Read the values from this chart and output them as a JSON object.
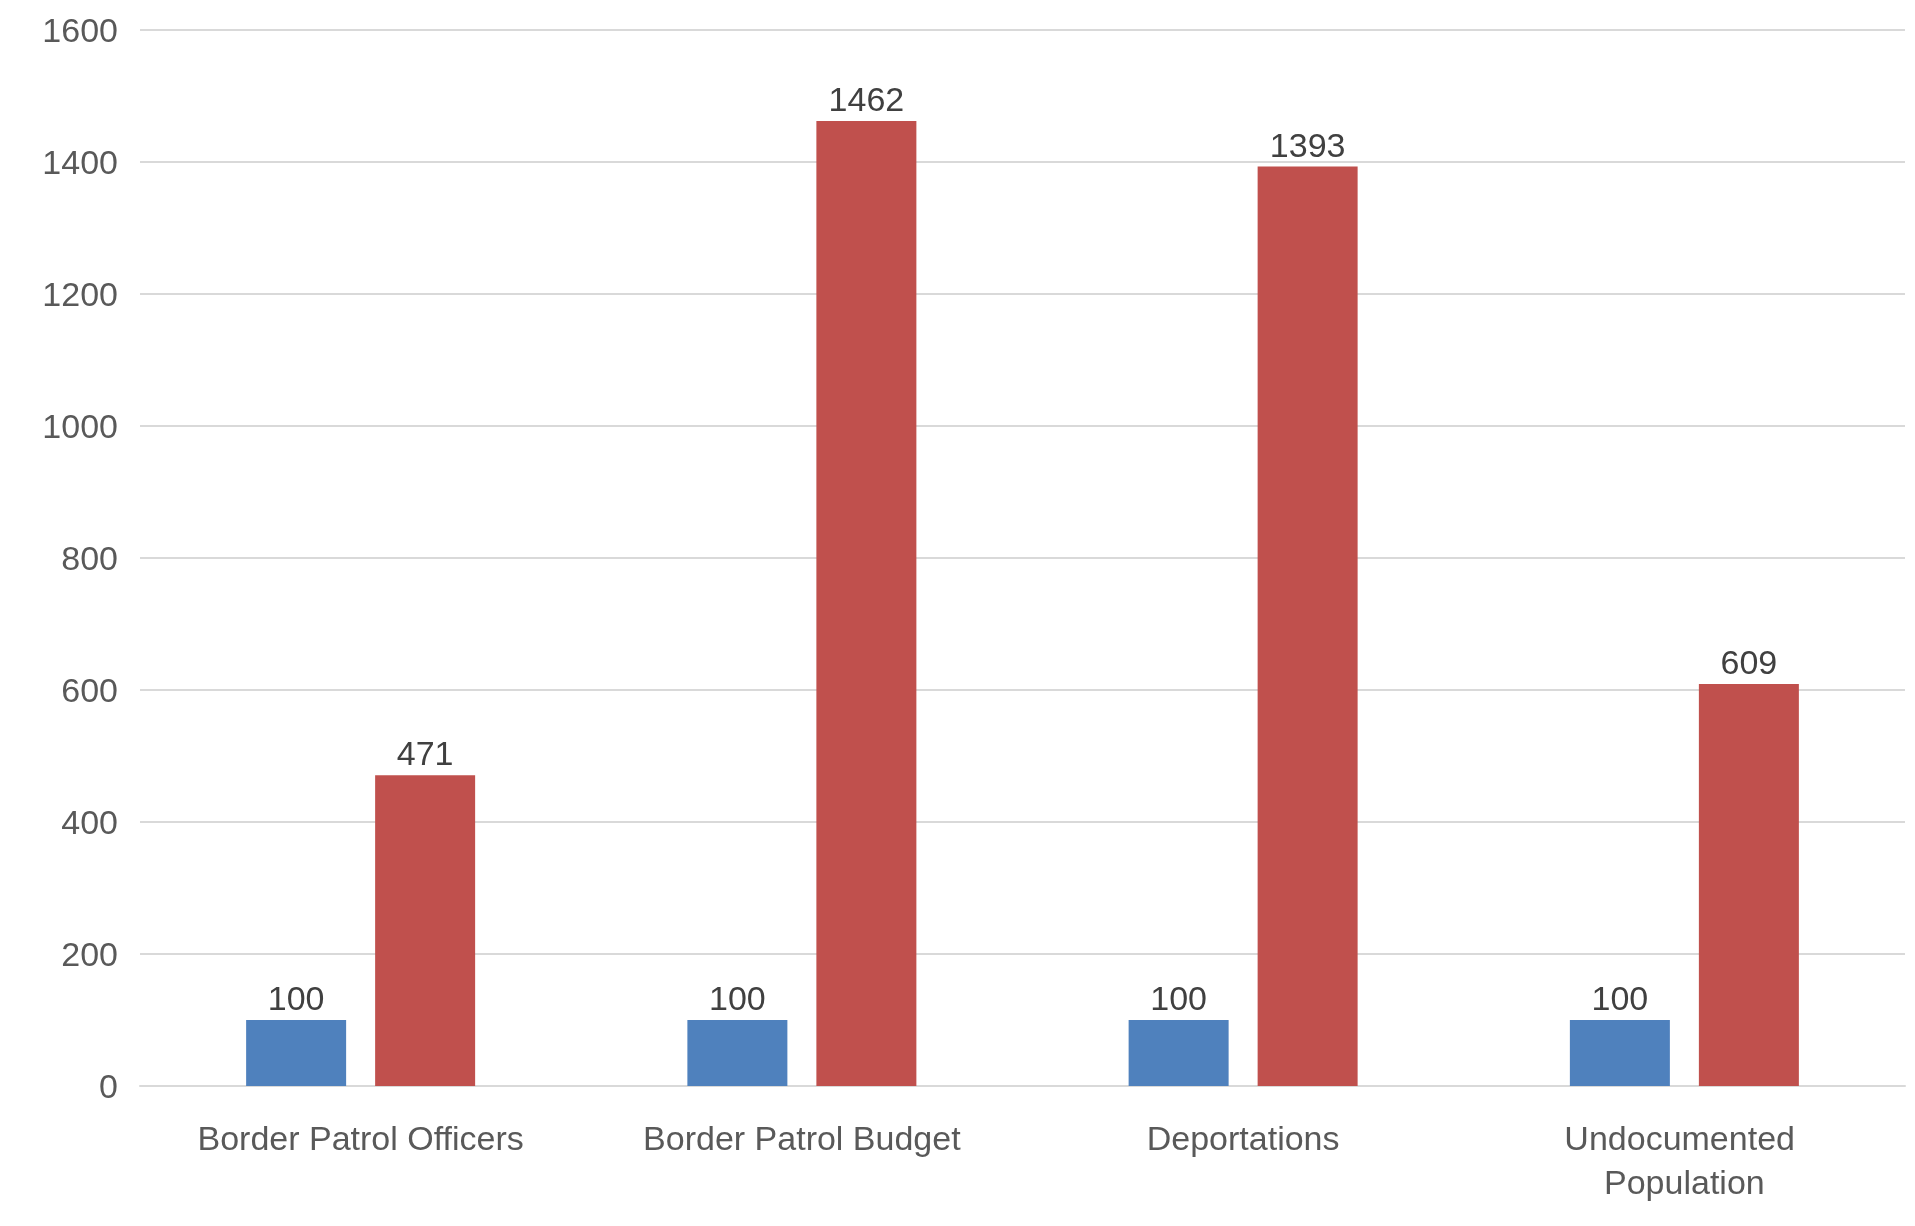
{
  "chart_data": {
    "type": "bar",
    "categories": [
      "Border Patrol Officers",
      "Border Patrol Budget",
      "Deportations",
      "Undocumented Population"
    ],
    "series": [
      {
        "color": "#4f81bd",
        "values": [
          100,
          100,
          100,
          100
        ]
      },
      {
        "color": "#c0504d",
        "values": [
          471,
          1462,
          1393,
          609
        ]
      }
    ],
    "ylim": [
      0,
      1600
    ],
    "yticks": [
      0,
      200,
      400,
      600,
      800,
      1000,
      1200,
      1400,
      1600
    ],
    "grid": true,
    "data_labels": true
  }
}
